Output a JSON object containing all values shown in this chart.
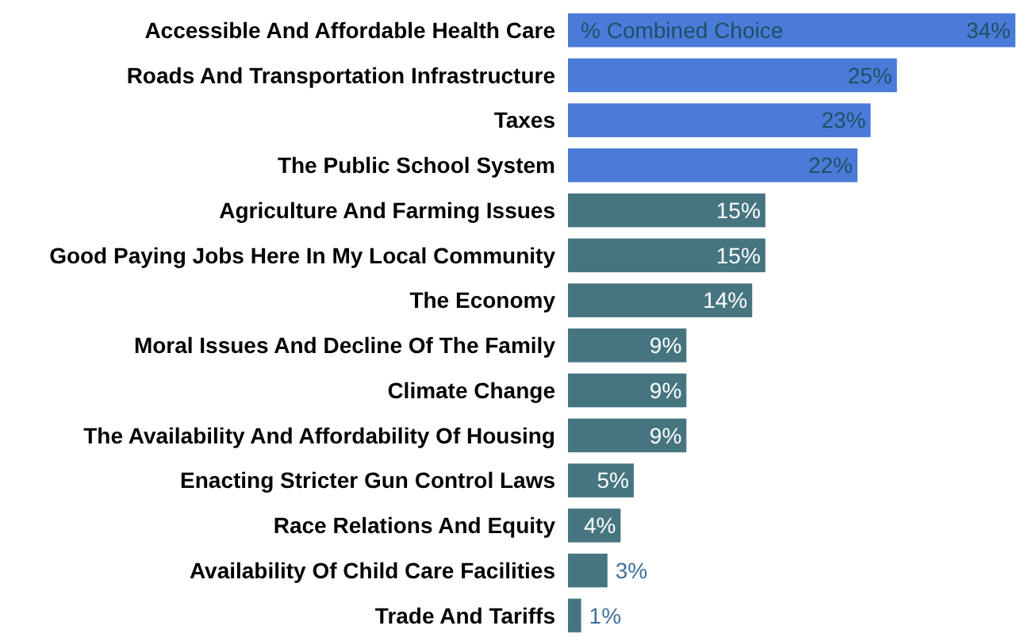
{
  "chart_data": {
    "type": "bar",
    "orientation": "horizontal",
    "categories": [
      "Accessible And Affordable Health Care",
      "Roads And Transportation Infrastructure",
      "Taxes",
      "The Public School System",
      "Agriculture And Farming Issues",
      "Good Paying Jobs Here In My Local Community",
      "The Economy",
      "Moral Issues And Decline Of The Family",
      "Climate Change",
      "The Availability And Affordability Of Housing",
      "Enacting Stricter Gun Control Laws",
      "Race Relations And Equity",
      "Availability Of Child Care Facilities",
      "Trade And Tariffs"
    ],
    "series": [
      {
        "name": "% Combined Choice",
        "values": [
          34,
          25,
          23,
          22,
          15,
          15,
          14,
          9,
          9,
          9,
          5,
          4,
          3,
          1
        ],
        "value_labels": [
          "34%",
          "25%",
          "23%",
          "22%",
          "15%",
          "15%",
          "14%",
          "9%",
          "9%",
          "9%",
          "5%",
          "4%",
          "3%",
          "1%"
        ],
        "colors": [
          "#4a7bd9",
          "#4a7bd9",
          "#4a7bd9",
          "#4a7bd9",
          "#467580",
          "#467580",
          "#467580",
          "#467580",
          "#467580",
          "#467580",
          "#467580",
          "#467580",
          "#467580",
          "#467580"
        ]
      }
    ],
    "xlim": [
      0,
      34
    ],
    "legend": false
  }
}
